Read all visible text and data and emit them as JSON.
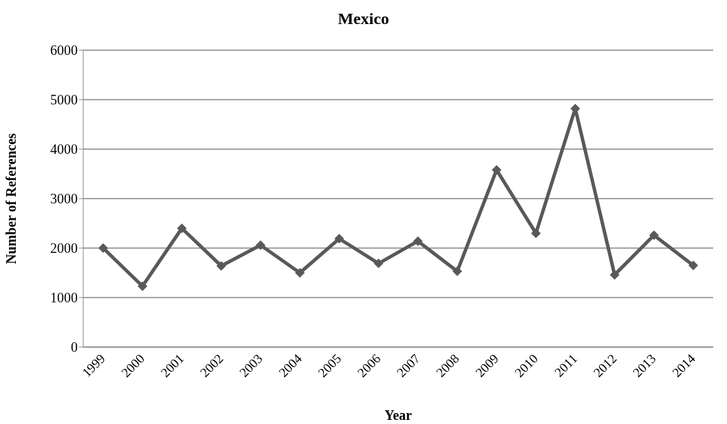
{
  "chart_data": {
    "type": "line",
    "title": "Mexico",
    "xlabel": "Year",
    "ylabel": "Number of References",
    "categories": [
      "1999",
      "2000",
      "2001",
      "2002",
      "2003",
      "2004",
      "2005",
      "2006",
      "2007",
      "2008",
      "2009",
      "2010",
      "2011",
      "2012",
      "2013",
      "2014"
    ],
    "series": [
      {
        "color": "#595959",
        "values": [
          2000,
          1230,
          2400,
          1640,
          2060,
          1500,
          2190,
          1690,
          2140,
          1530,
          3580,
          2300,
          4820,
          1460,
          2260,
          1650
        ]
      }
    ],
    "ylim": [
      0,
      6000
    ],
    "yticks": [
      0,
      1000,
      2000,
      3000,
      4000,
      5000,
      6000
    ],
    "grid": "y",
    "marker": "diamond",
    "line_style": "solid",
    "legend": false
  }
}
